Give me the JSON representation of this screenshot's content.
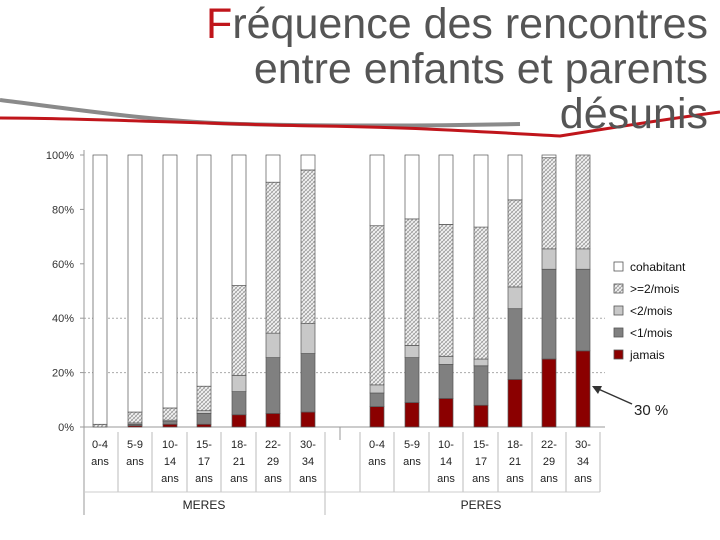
{
  "title": {
    "first_letter": "F",
    "rest": "réquence des rencontres entre enfants et parents désunis"
  },
  "chart_data": {
    "type": "bar",
    "stacked": true,
    "percent": true,
    "ylim": [
      0,
      100
    ],
    "yticks": [
      "0%",
      "20%",
      "40%",
      "60%",
      "80%",
      "100%"
    ],
    "grid": "dotted horizontal at 20% and 40%",
    "legend_position": "right",
    "groups": [
      {
        "name": "MERES",
        "categories": [
          [
            "0-4",
            "ans"
          ],
          [
            "5-9",
            "ans"
          ],
          [
            "10-",
            "14",
            "ans"
          ],
          [
            "15-",
            "17",
            "ans"
          ],
          [
            "18-",
            "21",
            "ans"
          ],
          [
            "22-",
            "29",
            "ans"
          ],
          [
            "30-",
            "34",
            "ans"
          ]
        ]
      },
      {
        "name": "PERES",
        "categories": [
          [
            "0-4",
            "ans"
          ],
          [
            "5-9",
            "ans"
          ],
          [
            "10-",
            "14",
            "ans"
          ],
          [
            "15-",
            "17",
            "ans"
          ],
          [
            "18-",
            "21",
            "ans"
          ],
          [
            "22-",
            "29",
            "ans"
          ],
          [
            "30-",
            "34",
            "ans"
          ]
        ]
      }
    ],
    "series": [
      {
        "name": "jamais",
        "color": "#8b0000",
        "pattern": "solid",
        "meres": [
          0,
          0.5,
          1,
          1,
          4.5,
          5,
          5.5
        ],
        "peres": [
          7.5,
          9,
          10.5,
          8,
          17.5,
          25,
          28
        ]
      },
      {
        "name": "<1/mois",
        "color": "#808080",
        "pattern": "solid",
        "meres": [
          0,
          0.5,
          1,
          4,
          8.5,
          20.5,
          21.5
        ],
        "peres": [
          5,
          16.5,
          12.5,
          14.5,
          26,
          33,
          30
        ]
      },
      {
        "name": "<2/mois",
        "color": "#c8c8c8",
        "pattern": "solid",
        "meres": [
          0,
          0.5,
          0.5,
          1,
          6,
          9,
          11
        ],
        "peres": [
          3,
          4.5,
          3,
          2.5,
          8,
          7.5,
          7.5
        ]
      },
      {
        "name": ">=2/mois",
        "color": "#d0d0d0",
        "pattern": "hatch",
        "meres": [
          1,
          4,
          4.5,
          9,
          33,
          55.5,
          56.5
        ],
        "peres": [
          58.5,
          46.5,
          48.5,
          48.5,
          32,
          33.5,
          34.5
        ]
      },
      {
        "name": "cohabitant",
        "color": "#ffffff",
        "pattern": "solid",
        "meres": [
          99,
          94.5,
          93,
          85,
          48,
          10,
          5.5
        ],
        "peres": [
          26,
          23.5,
          25.5,
          26.5,
          16.5,
          1,
          0
        ]
      }
    ],
    "annotation": "30 %"
  }
}
